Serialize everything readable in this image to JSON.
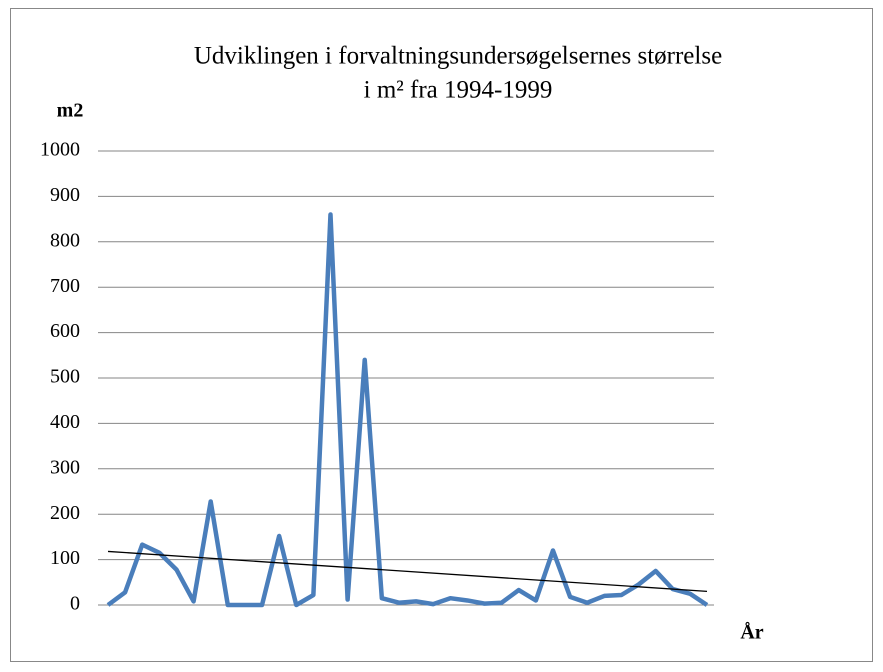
{
  "chart_data": {
    "type": "line",
    "title": [
      "Udviklingen i forvaltningsundersøgelsernes størrelse",
      "i m² fra 1994-1999"
    ],
    "y_label": "m2",
    "x_label": "År",
    "categories": [
      null,
      null,
      null,
      null,
      null,
      null,
      null,
      null,
      null,
      null,
      null,
      null,
      null,
      null,
      null,
      null,
      null,
      null,
      null,
      null,
      null,
      null,
      null,
      null,
      null,
      null,
      null,
      null,
      null,
      null,
      null,
      null,
      null,
      null,
      null,
      null
    ],
    "values": [
      0,
      28,
      133,
      115,
      78,
      8,
      228,
      0,
      0,
      0,
      152,
      0,
      22,
      860,
      12,
      540,
      15,
      5,
      8,
      2,
      15,
      10,
      3,
      5,
      33,
      10,
      120,
      18,
      5,
      20,
      22,
      45,
      75,
      35,
      25,
      0
    ],
    "color": "#4a7ebb",
    "trendline": {
      "start": 118,
      "end": 30,
      "color": "#000000"
    },
    "ylim": [
      0,
      1000
    ],
    "yticks": [
      0,
      100,
      200,
      300,
      400,
      500,
      600,
      700,
      800,
      900,
      1000
    ],
    "grid": true
  }
}
